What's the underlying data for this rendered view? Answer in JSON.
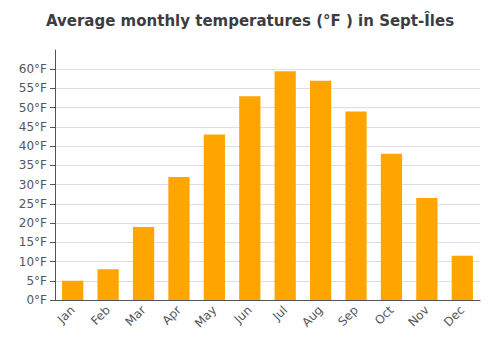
{
  "chart_data": {
    "type": "bar",
    "title": "Average monthly temperatures (°F ) in Sept-Îles",
    "categories": [
      "Jan",
      "Feb",
      "Mar",
      "Apr",
      "May",
      "Jun",
      "Jul",
      "Aug",
      "Sep",
      "Oct",
      "Nov",
      "Dec"
    ],
    "values": [
      5.0,
      8.0,
      19.0,
      32.0,
      43.0,
      53.0,
      59.5,
      57.0,
      49.0,
      38.0,
      26.5,
      11.5
    ],
    "color": "#FFA500",
    "ylim": [
      0,
      65
    ],
    "yticks": [
      {
        "value": 0,
        "label": "0°F"
      },
      {
        "value": 5,
        "label": "5°F"
      },
      {
        "value": 10,
        "label": "10°F"
      },
      {
        "value": 15,
        "label": "15°F"
      },
      {
        "value": 20,
        "label": "20°F"
      },
      {
        "value": 25,
        "label": "25°F"
      },
      {
        "value": 30,
        "label": "30°F"
      },
      {
        "value": 35,
        "label": "35°F"
      },
      {
        "value": 40,
        "label": "40°F"
      },
      {
        "value": 45,
        "label": "45°F"
      },
      {
        "value": 50,
        "label": "50°F"
      },
      {
        "value": 55,
        "label": "55°F"
      },
      {
        "value": 60,
        "label": "60°F"
      }
    ],
    "grid": true
  }
}
